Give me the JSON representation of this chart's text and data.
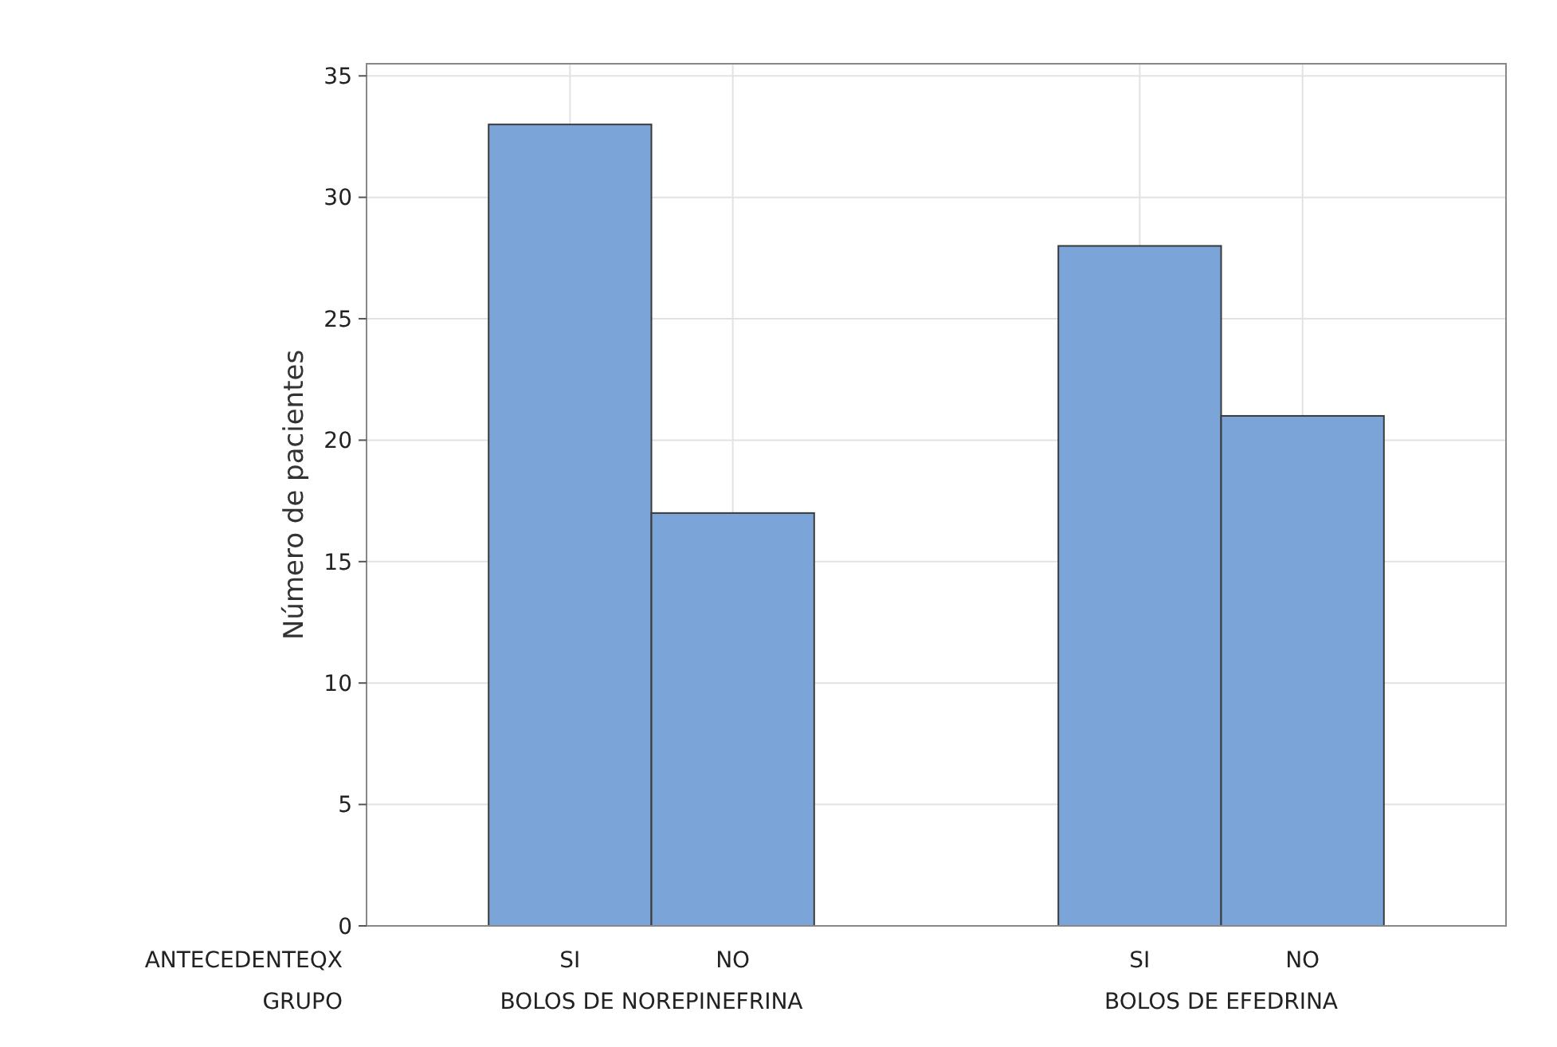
{
  "chart_data": {
    "type": "bar",
    "ylabel": "Número de pacientes",
    "xlabel": "ANTECEDENTEQX",
    "categories": [
      "SI",
      "NO",
      "SI",
      "NO"
    ],
    "values": [
      33,
      17,
      28,
      21
    ],
    "color": "#7ba5d8",
    "annotations": [
      "GRUPO",
      "BOLOS DE NOREPINEFRINA",
      "BOLOS DE EFEDRINA"
    ],
    "ylim": [
      0,
      35.5
    ],
    "yticks": [
      0,
      5,
      10,
      15,
      20,
      25,
      30,
      35
    ],
    "grid": true
  }
}
